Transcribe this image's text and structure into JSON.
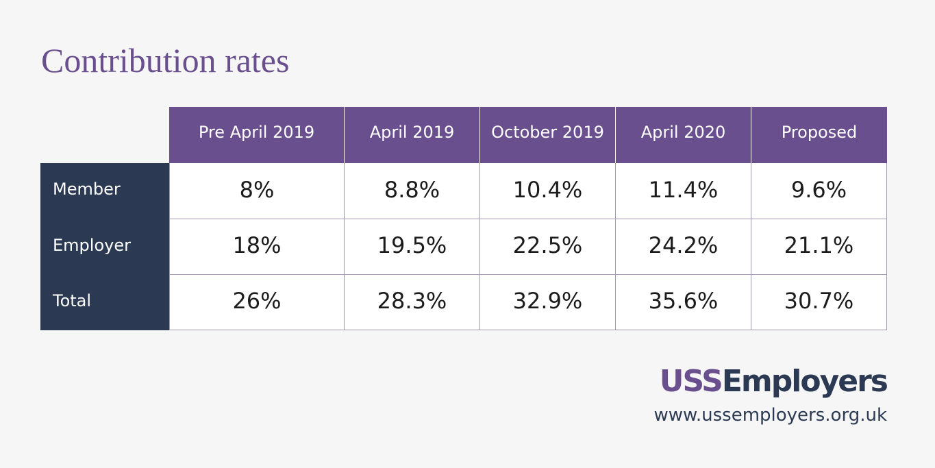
{
  "chart_data": {
    "type": "table",
    "title": "Contribution rates",
    "columns": [
      "Pre April 2019",
      "April 2019",
      "October 2019",
      "April 2020",
      "Proposed"
    ],
    "rows": [
      {
        "label": "Member",
        "values": [
          "8%",
          "8.8%",
          "10.4%",
          "11.4%",
          "9.6%"
        ]
      },
      {
        "label": "Employer",
        "values": [
          "18%",
          "19.5%",
          "22.5%",
          "24.2%",
          "21.1%"
        ]
      },
      {
        "label": "Total",
        "values": [
          "26%",
          "28.3%",
          "32.9%",
          "35.6%",
          "30.7%"
        ]
      }
    ],
    "units": "%"
  },
  "brand": {
    "logo_part1": "USS",
    "logo_part2": "Employers",
    "url": "www.ussemployers.org.uk"
  },
  "colors": {
    "background": "#f6f6f7",
    "purple": "#6a4f8e",
    "navy": "#2b3a52",
    "cell_background": "#ffffff",
    "text": "#1b1b1b"
  }
}
